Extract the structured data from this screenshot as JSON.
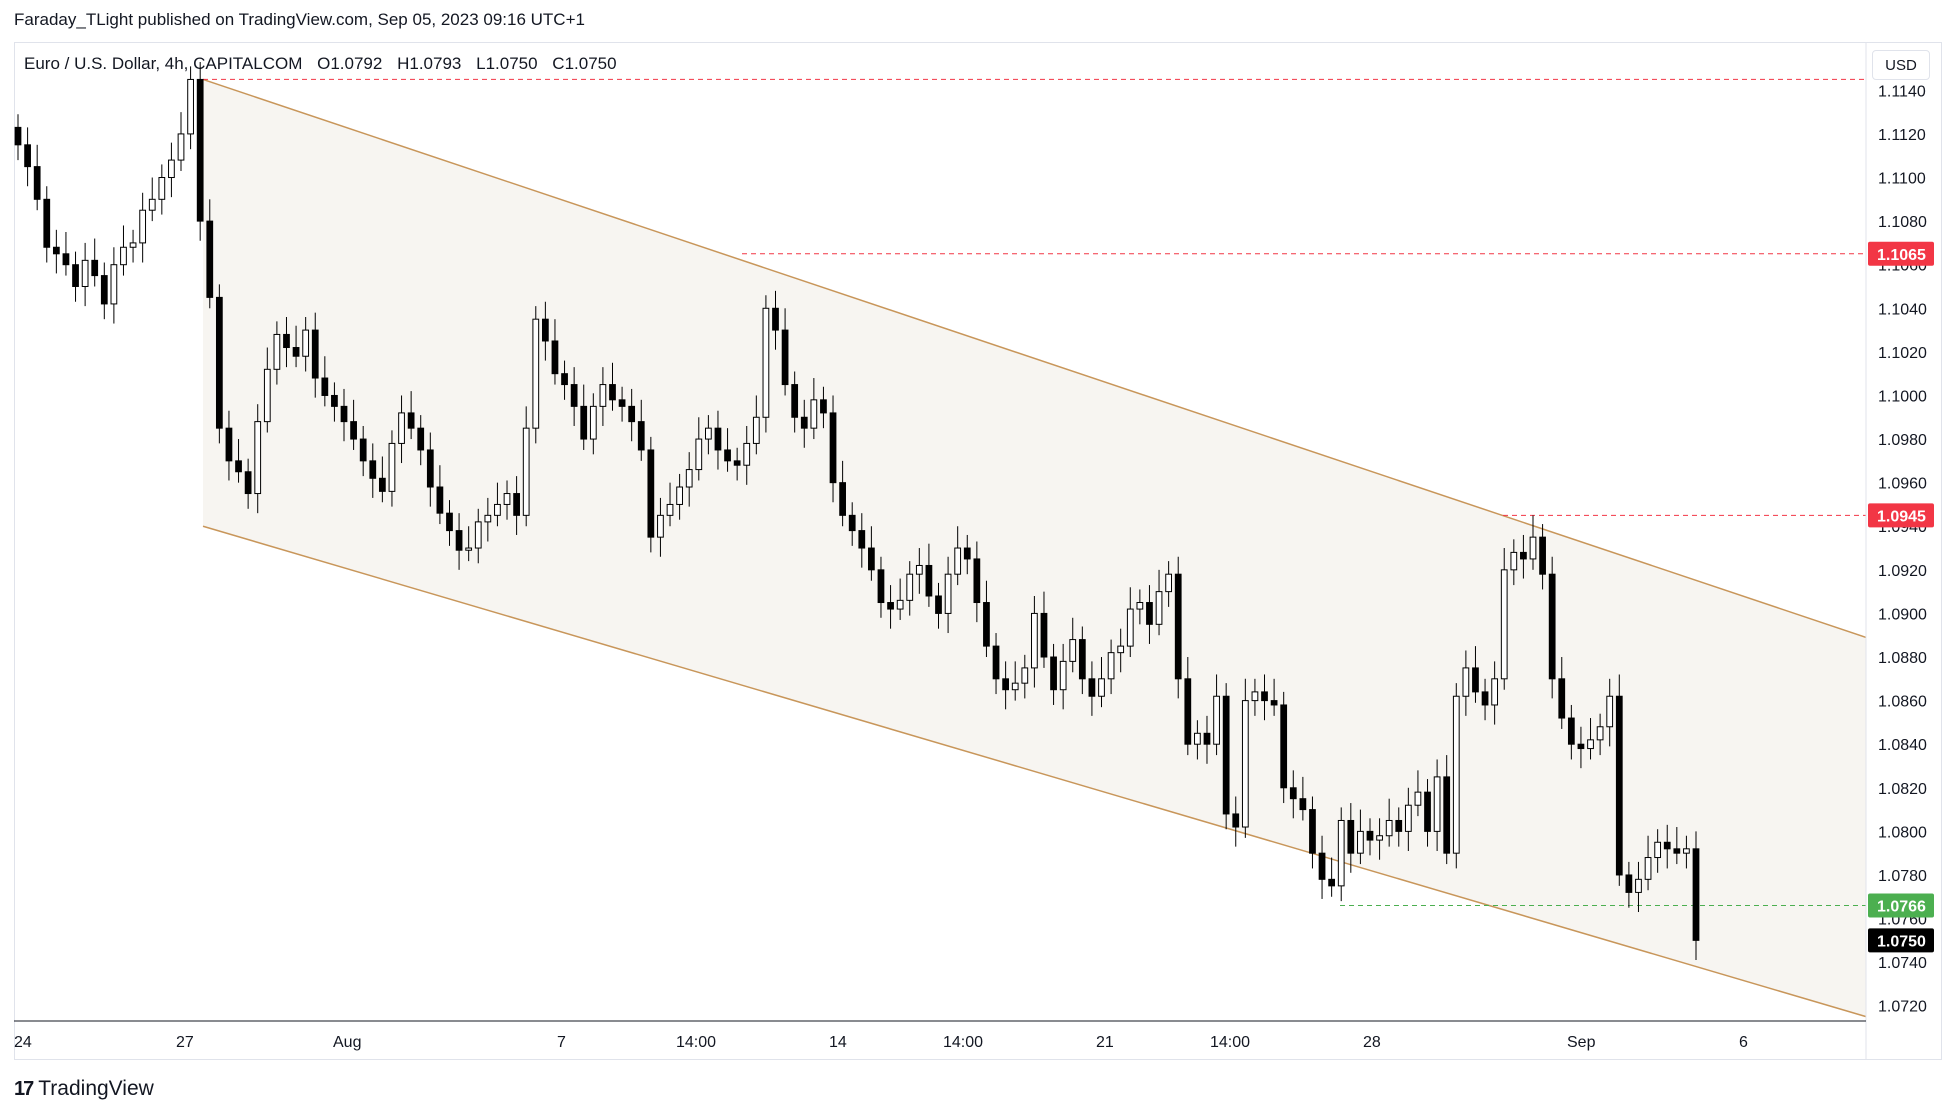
{
  "header": {
    "published": "Faraday_TLight published on TradingView.com, Sep 05, 2023 09:16 UTC+1"
  },
  "symbol": {
    "name": "Euro / U.S. Dollar, 4h, CAPITALCOM",
    "open": "O1.0792",
    "high": "H1.0793",
    "low": "L1.0750",
    "close": "C1.0750"
  },
  "currency_button": "USD",
  "footer": {
    "brand": "TradingView"
  },
  "chart_data": {
    "type": "candlestick",
    "title": "",
    "y_axis_ticks": [
      "1.1140",
      "1.1120",
      "1.1100",
      "1.1080",
      "1.1060",
      "1.1040",
      "1.1020",
      "1.1000",
      "1.0980",
      "1.0960",
      "1.0940",
      "1.0920",
      "1.0900",
      "1.0880",
      "1.0860",
      "1.0840",
      "1.0820",
      "1.0800",
      "1.0780",
      "1.0760",
      "1.0740",
      "1.0720"
    ],
    "x_axis_labels": [
      "24",
      "27",
      "Aug",
      "7",
      "14:00",
      "14",
      "14:00",
      "21",
      "14:00",
      "28",
      "Sep",
      "6"
    ],
    "ylim": [
      1.0713,
      1.1153
    ],
    "price_labels": [
      {
        "value": "1.1065",
        "color": "#f23645"
      },
      {
        "value": "1.0945",
        "color": "#f23645"
      },
      {
        "value": "1.0766",
        "color": "#4caf50"
      },
      {
        "value": "1.0750",
        "color": "#000000"
      }
    ],
    "horizontal_lines": [
      {
        "value": 1.1145,
        "style": "dashed",
        "color": "#f23645"
      },
      {
        "value": 1.1065,
        "style": "dashed",
        "color": "#f23645"
      },
      {
        "value": 1.0945,
        "style": "dashed",
        "color": "#f23645"
      },
      {
        "value": 1.0766,
        "style": "dashed",
        "color": "#4caf50"
      }
    ],
    "channel": {
      "color": "#c8965a",
      "upper": [
        [
          1.1145,
          1.0889
        ]
      ],
      "lower": [
        [
          1.094,
          1.0715
        ]
      ]
    },
    "close_series": [
      1.1115,
      1.1105,
      1.109,
      1.1068,
      1.1065,
      1.106,
      1.105,
      1.1062,
      1.1055,
      1.1042,
      1.106,
      1.1068,
      1.107,
      1.1085,
      1.109,
      1.11,
      1.1108,
      1.112,
      1.1145,
      1.108,
      1.1045,
      1.0985,
      1.097,
      1.0965,
      1.0955,
      1.0988,
      1.1012,
      1.1028,
      1.1022,
      1.1018,
      1.103,
      1.1008,
      1.1,
      1.0995,
      1.0988,
      1.098,
      1.097,
      1.0962,
      1.0956,
      1.0978,
      1.0992,
      1.0985,
      1.0975,
      1.0958,
      1.0946,
      1.0938,
      1.0929,
      1.093,
      1.0942,
      1.0945,
      1.095,
      1.0955,
      1.0945,
      1.0985,
      1.1035,
      1.1025,
      1.101,
      1.1005,
      1.0995,
      1.098,
      1.0995,
      1.1005,
      1.0998,
      1.0995,
      1.0988,
      1.0975,
      1.0935,
      1.0945,
      1.095,
      1.0958,
      1.0966,
      1.098,
      1.0985,
      1.0975,
      1.097,
      1.0968,
      1.0978,
      1.099,
      1.104,
      1.103,
      1.1005,
      1.099,
      1.0985,
      1.0998,
      1.0992,
      1.096,
      1.0945,
      1.0938,
      1.093,
      1.092,
      1.0905,
      1.0902,
      1.0906,
      1.0918,
      1.0922,
      1.0908,
      1.09,
      1.0918,
      1.093,
      1.0925,
      1.0905,
      1.0885,
      1.087,
      1.0865,
      1.0868,
      1.0875,
      1.09,
      1.088,
      1.0865,
      1.0878,
      1.0888,
      1.087,
      1.0862,
      1.087,
      1.0882,
      1.0885,
      1.0902,
      1.0905,
      1.0895,
      1.091,
      1.0918,
      1.087,
      1.084,
      1.0845,
      1.084,
      1.0862,
      1.0808,
      1.0802,
      1.086,
      1.0864,
      1.086,
      1.0858,
      1.082,
      1.0815,
      1.081,
      1.079,
      1.0778,
      1.0775,
      1.0805,
      1.079,
      1.08,
      1.0796,
      1.0798,
      1.0805,
      1.08,
      1.0812,
      1.0818,
      1.08,
      1.0825,
      1.079,
      1.0862,
      1.0875,
      1.0864,
      1.0858,
      1.087,
      1.092,
      1.0928,
      1.0925,
      1.0935,
      1.0918,
      1.087,
      1.0852,
      1.084,
      1.0838,
      1.0842,
      1.0848,
      1.0862,
      1.078,
      1.0772,
      1.0778,
      1.0788,
      1.0795,
      1.0792,
      1.079,
      1.0792,
      1.075
    ]
  }
}
